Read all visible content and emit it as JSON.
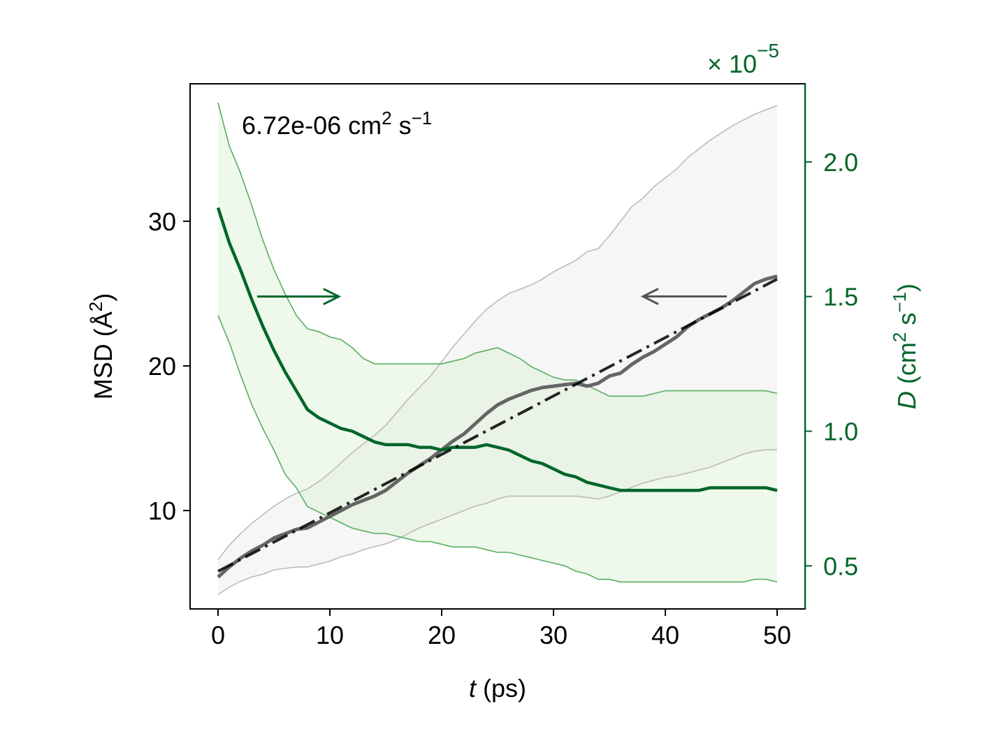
{
  "chart_data": {
    "type": "line",
    "annotation": {
      "base": "6.72e-06 cm",
      "sup1": "2",
      "mid": " s",
      "sup2": "−1"
    },
    "xlabel": {
      "var": "t",
      "unit": " (ps)"
    },
    "ylabel_left": {
      "pre": "MSD (Å",
      "sup": "2",
      "post": ")"
    },
    "ylabel_right": {
      "var": "D",
      "pre": " (cm",
      "sup1": "2",
      "mid": " s",
      "sup2": "−1",
      "post": ")"
    },
    "right_axis_multiplier": {
      "base": "× 10",
      "exp": "−5"
    },
    "xlim": [
      -2.5,
      52.5
    ],
    "ylim_left": [
      3.2,
      39.5
    ],
    "ylim_right": [
      0.34,
      2.29
    ],
    "x_ticks": [
      0,
      10,
      20,
      30,
      40,
      50
    ],
    "x_tick_labels": [
      "0",
      "10",
      "20",
      "30",
      "40",
      "50"
    ],
    "y_left_ticks": [
      10,
      20,
      30
    ],
    "y_left_tick_labels": [
      "10",
      "20",
      "30"
    ],
    "y_right_ticks": [
      0.5,
      1.0,
      1.5,
      2.0
    ],
    "y_right_tick_labels": [
      "0.5",
      "1.0",
      "1.5",
      "2.0"
    ],
    "colors": {
      "msd": "#555555",
      "msd_band_fill": "#f2f2f2",
      "msd_band_edge": "#bbbbbb",
      "fit": "#000000",
      "d": "#006629",
      "d_band_fill": "#d9f0d3",
      "d_band_edge": "#5aae61",
      "right_axis": "#006629"
    },
    "series": [
      {
        "axis": "left",
        "kind": "msd_mean",
        "x": [
          0,
          1,
          2,
          3,
          4,
          5,
          6,
          7,
          8,
          9,
          10,
          11,
          12,
          13,
          14,
          15,
          16,
          17,
          18,
          19,
          20,
          21,
          22,
          23,
          24,
          25,
          26,
          27,
          28,
          29,
          30,
          31,
          32,
          33,
          34,
          35,
          36,
          37,
          38,
          39,
          40,
          41,
          42,
          43,
          44,
          45,
          46,
          47,
          48,
          49,
          50
        ],
        "y": [
          5.4,
          6.1,
          6.7,
          7.2,
          7.6,
          8.1,
          8.4,
          8.7,
          8.8,
          9.2,
          9.6,
          10.0,
          10.4,
          10.7,
          11.0,
          11.4,
          12.0,
          12.6,
          13.1,
          13.6,
          14.2,
          14.8,
          15.3,
          16.0,
          16.7,
          17.3,
          17.7,
          18.0,
          18.3,
          18.5,
          18.6,
          18.7,
          18.8,
          18.6,
          18.8,
          19.3,
          19.5,
          20.1,
          20.6,
          21.0,
          21.5,
          22.0,
          22.7,
          23.2,
          23.6,
          24.0,
          24.5,
          25.1,
          25.7,
          26.0,
          26.2
        ]
      },
      {
        "axis": "left",
        "kind": "msd_upper",
        "x": [
          0,
          1,
          2,
          3,
          4,
          5,
          6,
          7,
          8,
          9,
          10,
          11,
          12,
          13,
          14,
          15,
          16,
          17,
          18,
          19,
          20,
          21,
          22,
          23,
          24,
          25,
          26,
          27,
          28,
          29,
          30,
          31,
          32,
          33,
          34,
          35,
          36,
          37,
          38,
          39,
          40,
          41,
          42,
          43,
          44,
          45,
          46,
          47,
          48,
          49,
          50
        ],
        "y": [
          6.6,
          7.6,
          8.4,
          9.1,
          9.7,
          10.3,
          10.8,
          11.2,
          11.5,
          12.0,
          12.6,
          13.3,
          14.0,
          14.6,
          15.2,
          15.9,
          16.8,
          17.7,
          18.5,
          19.3,
          20.3,
          21.3,
          22.2,
          23.1,
          23.9,
          24.5,
          25.0,
          25.3,
          25.6,
          26.0,
          26.5,
          26.9,
          27.3,
          27.9,
          28.1,
          29.0,
          30.0,
          31.0,
          31.6,
          32.4,
          33.0,
          33.6,
          34.4,
          35.0,
          35.6,
          36.1,
          36.6,
          37.0,
          37.4,
          37.7,
          38.0
        ]
      },
      {
        "axis": "left",
        "kind": "msd_lower",
        "x": [
          0,
          1,
          2,
          3,
          4,
          5,
          6,
          7,
          8,
          9,
          10,
          11,
          12,
          13,
          14,
          15,
          16,
          17,
          18,
          19,
          20,
          21,
          22,
          23,
          24,
          25,
          26,
          27,
          28,
          29,
          30,
          31,
          32,
          33,
          34,
          35,
          36,
          37,
          38,
          39,
          40,
          41,
          42,
          43,
          44,
          45,
          46,
          47,
          48,
          49,
          50
        ],
        "y": [
          4.2,
          4.7,
          5.1,
          5.4,
          5.6,
          5.9,
          6.0,
          6.1,
          6.1,
          6.3,
          6.5,
          6.8,
          7.0,
          7.3,
          7.5,
          7.7,
          8.0,
          8.4,
          8.8,
          9.1,
          9.4,
          9.7,
          10.0,
          10.3,
          10.5,
          10.8,
          11.0,
          11.0,
          11.0,
          11.0,
          11.0,
          11.0,
          11.0,
          10.9,
          10.8,
          11.0,
          11.3,
          11.6,
          11.9,
          12.1,
          12.3,
          12.4,
          12.6,
          12.8,
          13.0,
          13.3,
          13.6,
          13.9,
          14.1,
          14.2,
          14.2
        ]
      },
      {
        "axis": "left",
        "kind": "fit",
        "x": [
          0,
          50
        ],
        "y": [
          5.8,
          26.0
        ]
      },
      {
        "axis": "right",
        "kind": "d_mean",
        "x": [
          0,
          1,
          2,
          3,
          4,
          5,
          6,
          7,
          8,
          9,
          10,
          11,
          12,
          13,
          14,
          15,
          16,
          17,
          18,
          19,
          20,
          21,
          22,
          23,
          24,
          25,
          26,
          27,
          28,
          29,
          30,
          31,
          32,
          33,
          34,
          35,
          36,
          37,
          38,
          39,
          40,
          41,
          42,
          43,
          44,
          45,
          46,
          47,
          48,
          49,
          50
        ],
        "y": [
          1.83,
          1.7,
          1.6,
          1.49,
          1.39,
          1.3,
          1.22,
          1.15,
          1.08,
          1.05,
          1.03,
          1.01,
          1.0,
          0.98,
          0.96,
          0.95,
          0.95,
          0.95,
          0.94,
          0.94,
          0.93,
          0.94,
          0.94,
          0.94,
          0.95,
          0.94,
          0.93,
          0.91,
          0.89,
          0.88,
          0.86,
          0.84,
          0.83,
          0.81,
          0.8,
          0.79,
          0.78,
          0.78,
          0.78,
          0.78,
          0.78,
          0.78,
          0.78,
          0.78,
          0.79,
          0.79,
          0.79,
          0.79,
          0.79,
          0.79,
          0.78
        ]
      },
      {
        "axis": "right",
        "kind": "d_upper",
        "x": [
          0,
          1,
          2,
          3,
          4,
          5,
          6,
          7,
          8,
          9,
          10,
          11,
          12,
          13,
          14,
          15,
          16,
          17,
          18,
          19,
          20,
          21,
          22,
          23,
          24,
          25,
          26,
          27,
          28,
          29,
          30,
          31,
          32,
          33,
          34,
          35,
          36,
          37,
          38,
          39,
          40,
          41,
          42,
          43,
          44,
          45,
          46,
          47,
          48,
          49,
          50
        ],
        "y": [
          2.22,
          2.06,
          1.96,
          1.84,
          1.71,
          1.6,
          1.51,
          1.43,
          1.38,
          1.37,
          1.35,
          1.34,
          1.31,
          1.27,
          1.25,
          1.25,
          1.25,
          1.25,
          1.25,
          1.25,
          1.25,
          1.26,
          1.27,
          1.29,
          1.3,
          1.31,
          1.29,
          1.27,
          1.24,
          1.22,
          1.2,
          1.19,
          1.19,
          1.17,
          1.15,
          1.13,
          1.13,
          1.13,
          1.13,
          1.14,
          1.15,
          1.15,
          1.15,
          1.15,
          1.15,
          1.15,
          1.15,
          1.15,
          1.15,
          1.15,
          1.14
        ]
      },
      {
        "axis": "right",
        "kind": "d_lower",
        "x": [
          0,
          1,
          2,
          3,
          4,
          5,
          6,
          7,
          8,
          9,
          10,
          11,
          12,
          13,
          14,
          15,
          16,
          17,
          18,
          19,
          20,
          21,
          22,
          23,
          24,
          25,
          26,
          27,
          28,
          29,
          30,
          31,
          32,
          33,
          34,
          35,
          36,
          37,
          38,
          39,
          40,
          41,
          42,
          43,
          44,
          45,
          46,
          47,
          48,
          49,
          50
        ],
        "y": [
          1.43,
          1.33,
          1.21,
          1.1,
          1.01,
          0.93,
          0.84,
          0.79,
          0.72,
          0.7,
          0.68,
          0.66,
          0.64,
          0.63,
          0.62,
          0.62,
          0.61,
          0.6,
          0.59,
          0.59,
          0.58,
          0.57,
          0.57,
          0.57,
          0.56,
          0.55,
          0.55,
          0.54,
          0.53,
          0.52,
          0.51,
          0.5,
          0.48,
          0.47,
          0.45,
          0.45,
          0.44,
          0.44,
          0.44,
          0.44,
          0.44,
          0.44,
          0.44,
          0.44,
          0.44,
          0.44,
          0.44,
          0.44,
          0.45,
          0.45,
          0.44
        ]
      }
    ],
    "arrows": [
      {
        "points_to": "right",
        "axis": "right",
        "x_from": 3.5,
        "x_to": 10.8,
        "y": 1.5,
        "color": "#006629"
      },
      {
        "points_to": "left",
        "axis": "left",
        "x_from": 45.5,
        "x_to": 38.0,
        "y": 24.8,
        "color": "#555555"
      }
    ]
  }
}
